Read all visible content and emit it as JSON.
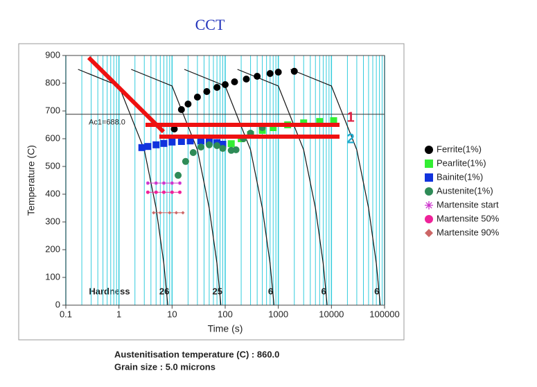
{
  "chart_data": {
    "type": "cct",
    "title": "CCT",
    "x_label": "Time (s)",
    "y_label": "Temperature (C)",
    "log_x": true,
    "xlim": [
      0.1,
      100000
    ],
    "ylim": [
      0,
      900
    ],
    "xticks": [
      0.1,
      1,
      10,
      100,
      1000,
      10000,
      100000
    ],
    "yticks": [
      0,
      100,
      200,
      300,
      400,
      500,
      600,
      700,
      800,
      900
    ],
    "minor_grid_x": true,
    "grid_color": "#33ccdd",
    "ac1": {
      "value": 688.0,
      "label": "Ac1=688.0"
    },
    "hardness_label": "Hardness",
    "cooling_curves": [
      {
        "x": [
          0.17,
          1,
          3,
          5,
          7,
          8.3
        ],
        "y": [
          850,
          790,
          560,
          350,
          150,
          0
        ],
        "hardness": 26
      },
      {
        "x": [
          1.7,
          10,
          30,
          50,
          70,
          83
        ],
        "y": [
          850,
          790,
          560,
          350,
          150,
          0
        ],
        "hardness": 25
      },
      {
        "x": [
          17,
          100,
          300,
          500,
          700,
          830
        ],
        "y": [
          850,
          790,
          560,
          350,
          150,
          0
        ],
        "hardness": 6
      },
      {
        "x": [
          170,
          1000,
          3000,
          5000,
          7000,
          8300
        ],
        "y": [
          850,
          790,
          560,
          350,
          150,
          0
        ],
        "hardness": 6
      },
      {
        "x": [
          1700,
          10000,
          30000,
          50000,
          70000,
          83000
        ],
        "y": [
          850,
          790,
          560,
          350,
          150,
          0
        ],
        "hardness": 6
      }
    ],
    "series": [
      {
        "name": "Ferrite(1%)",
        "color": "#000000",
        "marker": "circle",
        "x": [
          11,
          15,
          20,
          30,
          45,
          70,
          100,
          150,
          250,
          400,
          700,
          1000,
          2000
        ],
        "values": [
          635,
          705,
          725,
          750,
          770,
          785,
          795,
          805,
          815,
          825,
          835,
          840,
          843
        ]
      },
      {
        "name": "Pearlite(1%)",
        "color": "#33ee33",
        "marker": "square",
        "x": [
          130,
          200,
          300,
          500,
          800,
          1500,
          3000,
          6000,
          11000
        ],
        "values": [
          582,
          600,
          615,
          630,
          640,
          650,
          657,
          662,
          665
        ]
      },
      {
        "name": "Bainite(1%)",
        "color": "#1133dd",
        "marker": "square",
        "x": [
          2.7,
          3.5,
          5,
          7,
          10,
          15,
          22,
          35,
          50,
          70,
          90
        ],
        "values": [
          568,
          572,
          578,
          583,
          588,
          590,
          592,
          592,
          590,
          586,
          580
        ]
      },
      {
        "name": "Austenite(1%)",
        "color": "#2e8b57",
        "marker": "circle",
        "x": [
          13,
          18,
          25,
          35,
          50,
          70,
          90,
          130,
          160,
          220,
          300,
          500
        ],
        "values": [
          468,
          518,
          550,
          570,
          578,
          575,
          565,
          558,
          560,
          600,
          620,
          640
        ]
      },
      {
        "name": "Martensite start",
        "color": "#cc33cc",
        "marker": "asterisk",
        "x": [
          3.5,
          5,
          7,
          10,
          14
        ],
        "values": [
          440,
          440,
          440,
          440,
          440
        ]
      },
      {
        "name": "Martensite 50%",
        "color": "#ee2299",
        "marker": "circle",
        "x": [
          3.5,
          5,
          7,
          10,
          14
        ],
        "values": [
          407,
          407,
          407,
          407,
          407
        ]
      },
      {
        "name": "Martensite 90%",
        "color": "#cc6666",
        "marker": "diamond",
        "x": [
          4.5,
          6,
          9,
          12,
          16
        ],
        "values": [
          333,
          333,
          333,
          333,
          333
        ]
      }
    ],
    "annotations": [
      {
        "text": "1",
        "color": "#dd2244"
      },
      {
        "text": "2",
        "color": "#22aacc"
      }
    ],
    "footer": [
      "Austenitisation temperature (C) : 860.0",
      "Grain size : 5.0 microns"
    ]
  }
}
